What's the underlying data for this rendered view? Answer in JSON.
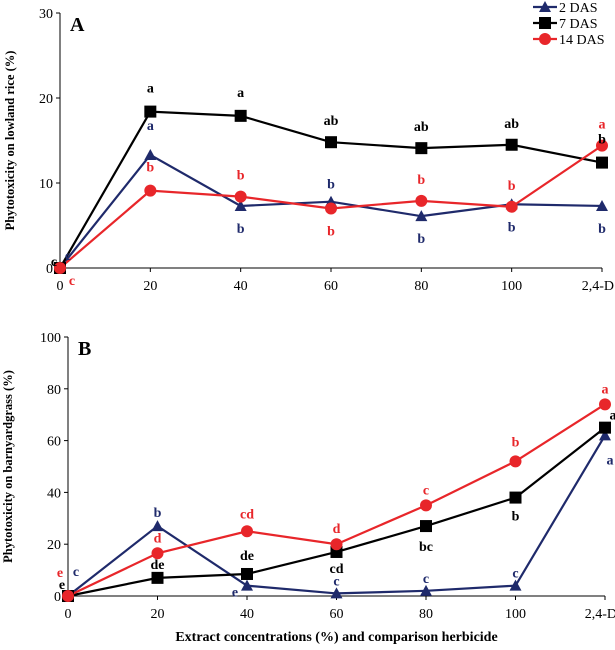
{
  "legend": [
    {
      "name": "2 DAS",
      "color": "#1f2a6b",
      "marker": "triangle"
    },
    {
      "name": "7 DAS",
      "color": "#000000",
      "marker": "square"
    },
    {
      "name": "14 DAS",
      "color": "#e8262a",
      "marker": "circle"
    }
  ],
  "chart_data": [
    {
      "type": "line",
      "panel_label": "A",
      "ylabel": "Phytotoxicity on lowland rice (%)",
      "xlabel": "",
      "categories": [
        "0",
        "20",
        "40",
        "60",
        "80",
        "100",
        "2,4-D"
      ],
      "ylim": [
        0,
        30
      ],
      "yticks": [
        "0",
        "10",
        "20",
        "30"
      ],
      "grid": false,
      "legend_position": "top-right",
      "series": [
        {
          "name": "2 DAS",
          "values": [
            0,
            13.3,
            7.3,
            7.8,
            6.1,
            7.5,
            7.3
          ],
          "letters": [
            "c",
            "a",
            "b",
            "b",
            "b",
            "b",
            "b"
          ]
        },
        {
          "name": "7 DAS",
          "values": [
            0,
            18.4,
            17.9,
            14.8,
            14.1,
            14.5,
            12.4
          ],
          "letters": [
            "c",
            "a",
            "a",
            "ab",
            "ab",
            "ab",
            "b"
          ]
        },
        {
          "name": "14 DAS",
          "values": [
            0,
            9.1,
            8.4,
            7.0,
            7.9,
            7.2,
            14.4
          ],
          "letters": [
            "c",
            "b",
            "b",
            "b",
            "b",
            "b",
            "a"
          ]
        }
      ]
    },
    {
      "type": "line",
      "panel_label": "B",
      "ylabel": "Phytotoxicity on barnyardgrass (%)",
      "xlabel": "Extract concentrations (%) and comparison herbicide",
      "categories": [
        "0",
        "20",
        "40",
        "60",
        "80",
        "100",
        "2,4-D"
      ],
      "ylim": [
        0,
        100
      ],
      "yticks": [
        "0",
        "20",
        "40",
        "60",
        "80",
        "100"
      ],
      "grid": false,
      "series": [
        {
          "name": "2 DAS",
          "values": [
            0,
            27,
            4,
            1,
            2,
            4,
            62
          ],
          "letters": [
            "c",
            "b",
            "e",
            "c",
            "c",
            "c",
            "a"
          ]
        },
        {
          "name": "7 DAS",
          "values": [
            0,
            7,
            8.5,
            17,
            27,
            38,
            65
          ],
          "letters": [
            "e",
            "de",
            "de",
            "cd",
            "bc",
            "b",
            "a"
          ]
        },
        {
          "name": "14 DAS",
          "values": [
            0,
            16.5,
            25,
            20,
            35,
            52,
            74
          ],
          "letters": [
            "e",
            "d",
            "cd",
            "d",
            "c",
            "b",
            "a"
          ]
        }
      ]
    }
  ]
}
